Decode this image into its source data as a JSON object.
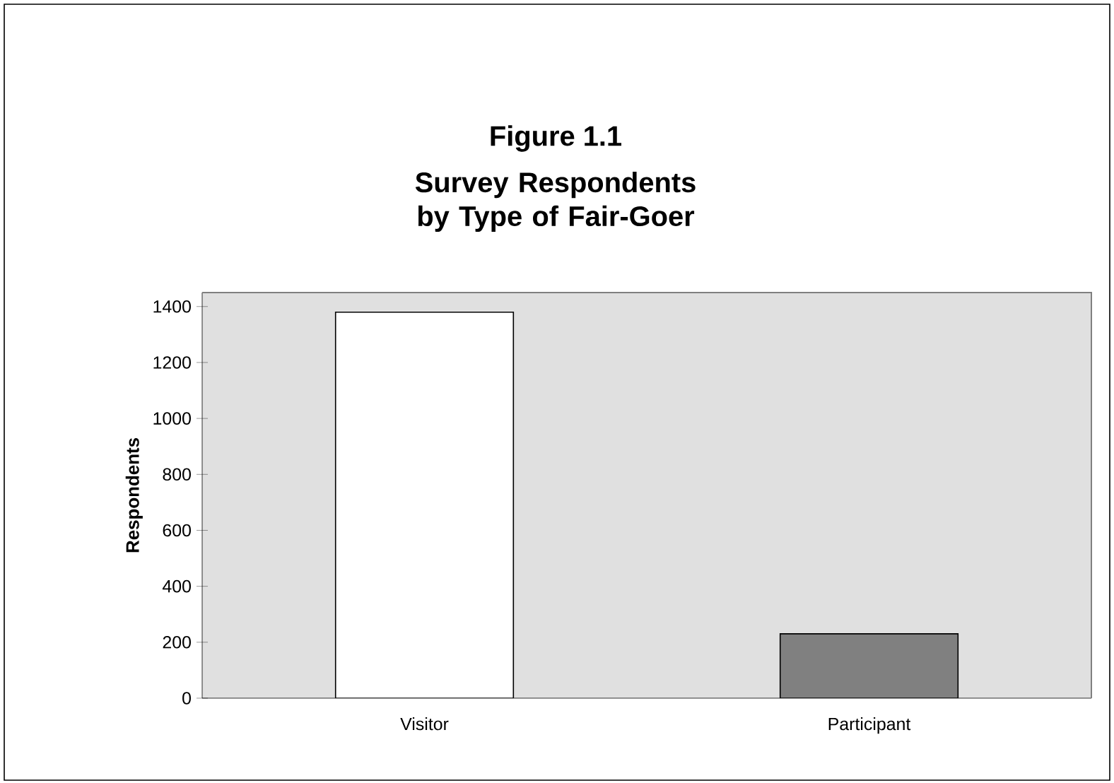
{
  "chart_data": {
    "type": "bar",
    "title": "Figure 1.1",
    "subtitle": "Survey Respondents by Type of Fair-Goer",
    "ylabel": "Respondents",
    "categories": [
      "Visitor",
      "Participant"
    ],
    "values": [
      1380,
      230
    ],
    "colors": [
      "#ffffff",
      "#808080"
    ],
    "ylim": [
      0,
      1450
    ],
    "yticks": [
      0,
      200,
      400,
      600,
      800,
      1000,
      1200,
      1400
    ],
    "grid": false
  }
}
